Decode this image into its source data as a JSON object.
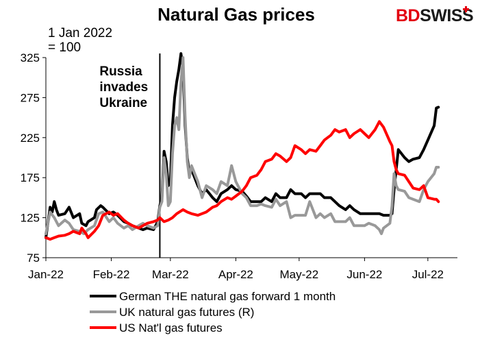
{
  "brand": {
    "part1": "BD",
    "part2": "SWISS",
    "color1": "#e3000f",
    "color2": "#1a1a1a"
  },
  "chart_data": {
    "type": "line",
    "title": "Natural Gas prices",
    "ylabel_line1": "1 Jan 2022",
    "ylabel_line2": "= 100",
    "ylim": [
      75,
      325
    ],
    "yticks": [
      "325",
      "275",
      "225",
      "175",
      "125",
      "75"
    ],
    "xticks": [
      "Jan-22",
      "Feb-22",
      "Mar-22",
      "Apr-22",
      "May-22",
      "Jun-22",
      "Jul-22"
    ],
    "grid": false,
    "legend_position": "bottom",
    "annotation": {
      "date": "2022-02-24",
      "lines": [
        "Russia",
        "invades",
        "Ukraine"
      ]
    },
    "series": [
      {
        "name": "German THE natural gas forward 1 month",
        "color": "#000000",
        "points": [
          [
            "2022-01-01",
            100
          ],
          [
            "2022-01-03",
            138
          ],
          [
            "2022-01-04",
            132
          ],
          [
            "2022-01-05",
            145
          ],
          [
            "2022-01-06",
            135
          ],
          [
            "2022-01-07",
            128
          ],
          [
            "2022-01-10",
            130
          ],
          [
            "2022-01-12",
            138
          ],
          [
            "2022-01-14",
            125
          ],
          [
            "2022-01-17",
            130
          ],
          [
            "2022-01-18",
            118
          ],
          [
            "2022-01-20",
            115
          ],
          [
            "2022-01-21",
            120
          ],
          [
            "2022-01-24",
            125
          ],
          [
            "2022-01-25",
            135
          ],
          [
            "2022-01-27",
            140
          ],
          [
            "2022-01-28",
            138
          ],
          [
            "2022-01-31",
            130
          ],
          [
            "2022-02-02",
            132
          ],
          [
            "2022-02-04",
            128
          ],
          [
            "2022-02-07",
            120
          ],
          [
            "2022-02-09",
            118
          ],
          [
            "2022-02-11",
            115
          ],
          [
            "2022-02-14",
            112
          ],
          [
            "2022-02-16",
            110
          ],
          [
            "2022-02-18",
            112
          ],
          [
            "2022-02-21",
            110
          ],
          [
            "2022-02-22",
            115
          ],
          [
            "2022-02-23",
            120
          ],
          [
            "2022-02-24",
            140
          ],
          [
            "2022-02-25",
            150
          ],
          [
            "2022-02-26",
            208
          ],
          [
            "2022-02-27",
            195
          ],
          [
            "2022-02-28",
            165
          ],
          [
            "2022-03-01",
            170
          ],
          [
            "2022-03-02",
            240
          ],
          [
            "2022-03-03",
            275
          ],
          [
            "2022-03-04",
            295
          ],
          [
            "2022-03-05",
            310
          ],
          [
            "2022-03-06",
            330
          ],
          [
            "2022-03-07",
            310
          ],
          [
            "2022-03-08",
            240
          ],
          [
            "2022-03-09",
            200
          ],
          [
            "2022-03-10",
            180
          ],
          [
            "2022-03-11",
            185
          ],
          [
            "2022-03-14",
            165
          ],
          [
            "2022-03-16",
            155
          ],
          [
            "2022-03-18",
            160
          ],
          [
            "2022-03-21",
            150
          ],
          [
            "2022-03-23",
            145
          ],
          [
            "2022-03-25",
            155
          ],
          [
            "2022-03-28",
            160
          ],
          [
            "2022-03-30",
            165
          ],
          [
            "2022-04-01",
            160
          ],
          [
            "2022-04-04",
            158
          ],
          [
            "2022-04-06",
            152
          ],
          [
            "2022-04-08",
            145
          ],
          [
            "2022-04-11",
            145
          ],
          [
            "2022-04-13",
            145
          ],
          [
            "2022-04-15",
            150
          ],
          [
            "2022-04-18",
            145
          ],
          [
            "2022-04-20",
            155
          ],
          [
            "2022-04-22",
            150
          ],
          [
            "2022-04-25",
            150
          ],
          [
            "2022-04-27",
            160
          ],
          [
            "2022-04-29",
            155
          ],
          [
            "2022-05-02",
            155
          ],
          [
            "2022-05-04",
            150
          ],
          [
            "2022-05-06",
            155
          ],
          [
            "2022-05-09",
            155
          ],
          [
            "2022-05-11",
            155
          ],
          [
            "2022-05-13",
            150
          ],
          [
            "2022-05-16",
            150
          ],
          [
            "2022-05-18",
            145
          ],
          [
            "2022-05-20",
            140
          ],
          [
            "2022-05-23",
            135
          ],
          [
            "2022-05-25",
            140
          ],
          [
            "2022-05-27",
            135
          ],
          [
            "2022-05-30",
            130
          ],
          [
            "2022-06-01",
            130
          ],
          [
            "2022-06-03",
            130
          ],
          [
            "2022-06-06",
            130
          ],
          [
            "2022-06-08",
            130
          ],
          [
            "2022-06-10",
            128
          ],
          [
            "2022-06-13",
            128
          ],
          [
            "2022-06-14",
            130
          ],
          [
            "2022-06-15",
            160
          ],
          [
            "2022-06-16",
            185
          ],
          [
            "2022-06-17",
            210
          ],
          [
            "2022-06-20",
            200
          ],
          [
            "2022-06-22",
            195
          ],
          [
            "2022-06-24",
            198
          ],
          [
            "2022-06-27",
            200
          ],
          [
            "2022-06-29",
            210
          ],
          [
            "2022-07-01",
            222
          ],
          [
            "2022-07-04",
            240
          ],
          [
            "2022-07-05",
            262
          ],
          [
            "2022-07-06",
            263
          ]
        ]
      },
      {
        "name": "UK natural gas futures (R)",
        "color": "#999999",
        "points": [
          [
            "2022-01-01",
            105
          ],
          [
            "2022-01-03",
            132
          ],
          [
            "2022-01-05",
            125
          ],
          [
            "2022-01-07",
            115
          ],
          [
            "2022-01-10",
            122
          ],
          [
            "2022-01-12",
            118
          ],
          [
            "2022-01-14",
            110
          ],
          [
            "2022-01-17",
            108
          ],
          [
            "2022-01-19",
            105
          ],
          [
            "2022-01-21",
            110
          ],
          [
            "2022-01-24",
            115
          ],
          [
            "2022-01-26",
            130
          ],
          [
            "2022-01-28",
            132
          ],
          [
            "2022-01-31",
            120
          ],
          [
            "2022-02-02",
            125
          ],
          [
            "2022-02-04",
            118
          ],
          [
            "2022-02-07",
            112
          ],
          [
            "2022-02-09",
            115
          ],
          [
            "2022-02-11",
            110
          ],
          [
            "2022-02-14",
            115
          ],
          [
            "2022-02-16",
            118
          ],
          [
            "2022-02-18",
            115
          ],
          [
            "2022-02-21",
            112
          ],
          [
            "2022-02-23",
            115
          ],
          [
            "2022-02-24",
            138
          ],
          [
            "2022-02-25",
            145
          ],
          [
            "2022-02-26",
            200
          ],
          [
            "2022-02-27",
            180
          ],
          [
            "2022-02-28",
            140
          ],
          [
            "2022-03-01",
            145
          ],
          [
            "2022-03-02",
            205
          ],
          [
            "2022-03-03",
            240
          ],
          [
            "2022-03-04",
            250
          ],
          [
            "2022-03-05",
            235
          ],
          [
            "2022-03-06",
            295
          ],
          [
            "2022-03-07",
            325
          ],
          [
            "2022-03-08",
            250
          ],
          [
            "2022-03-09",
            195
          ],
          [
            "2022-03-10",
            175
          ],
          [
            "2022-03-11",
            190
          ],
          [
            "2022-03-14",
            170
          ],
          [
            "2022-03-16",
            150
          ],
          [
            "2022-03-18",
            165
          ],
          [
            "2022-03-21",
            160
          ],
          [
            "2022-03-23",
            155
          ],
          [
            "2022-03-25",
            170
          ],
          [
            "2022-03-28",
            165
          ],
          [
            "2022-03-30",
            190
          ],
          [
            "2022-04-01",
            170
          ],
          [
            "2022-04-04",
            155
          ],
          [
            "2022-04-06",
            150
          ],
          [
            "2022-04-08",
            140
          ],
          [
            "2022-04-11",
            140
          ],
          [
            "2022-04-13",
            142
          ],
          [
            "2022-04-15",
            140
          ],
          [
            "2022-04-18",
            138
          ],
          [
            "2022-04-20",
            148
          ],
          [
            "2022-04-22",
            140
          ],
          [
            "2022-04-25",
            145
          ],
          [
            "2022-04-27",
            125
          ],
          [
            "2022-04-29",
            128
          ],
          [
            "2022-05-02",
            128
          ],
          [
            "2022-05-04",
            128
          ],
          [
            "2022-05-06",
            145
          ],
          [
            "2022-05-09",
            125
          ],
          [
            "2022-05-11",
            130
          ],
          [
            "2022-05-13",
            125
          ],
          [
            "2022-05-16",
            130
          ],
          [
            "2022-05-18",
            120
          ],
          [
            "2022-05-20",
            120
          ],
          [
            "2022-05-23",
            120
          ],
          [
            "2022-05-25",
            125
          ],
          [
            "2022-05-27",
            115
          ],
          [
            "2022-05-30",
            115
          ],
          [
            "2022-06-01",
            115
          ],
          [
            "2022-06-03",
            118
          ],
          [
            "2022-06-06",
            115
          ],
          [
            "2022-06-08",
            110
          ],
          [
            "2022-06-09",
            105
          ],
          [
            "2022-06-10",
            112
          ],
          [
            "2022-06-13",
            118
          ],
          [
            "2022-06-14",
            140
          ],
          [
            "2022-06-15",
            180
          ],
          [
            "2022-06-16",
            165
          ],
          [
            "2022-06-17",
            160
          ],
          [
            "2022-06-20",
            158
          ],
          [
            "2022-06-22",
            150
          ],
          [
            "2022-06-24",
            148
          ],
          [
            "2022-06-27",
            145
          ],
          [
            "2022-06-29",
            160
          ],
          [
            "2022-07-01",
            170
          ],
          [
            "2022-07-04",
            180
          ],
          [
            "2022-07-05",
            188
          ],
          [
            "2022-07-06",
            188
          ]
        ]
      },
      {
        "name": "US Nat'l gas futures",
        "color": "#ff0000",
        "points": [
          [
            "2022-01-01",
            100
          ],
          [
            "2022-01-03",
            98
          ],
          [
            "2022-01-05",
            100
          ],
          [
            "2022-01-07",
            102
          ],
          [
            "2022-01-10",
            103
          ],
          [
            "2022-01-12",
            105
          ],
          [
            "2022-01-14",
            108
          ],
          [
            "2022-01-17",
            105
          ],
          [
            "2022-01-18",
            112
          ],
          [
            "2022-01-20",
            105
          ],
          [
            "2022-01-21",
            100
          ],
          [
            "2022-01-24",
            108
          ],
          [
            "2022-01-26",
            115
          ],
          [
            "2022-01-28",
            128
          ],
          [
            "2022-01-31",
            132
          ],
          [
            "2022-02-02",
            128
          ],
          [
            "2022-02-04",
            130
          ],
          [
            "2022-02-07",
            122
          ],
          [
            "2022-02-09",
            118
          ],
          [
            "2022-02-11",
            115
          ],
          [
            "2022-02-14",
            112
          ],
          [
            "2022-02-16",
            115
          ],
          [
            "2022-02-18",
            118
          ],
          [
            "2022-02-21",
            120
          ],
          [
            "2022-02-23",
            122
          ],
          [
            "2022-02-24",
            125
          ],
          [
            "2022-02-26",
            120
          ],
          [
            "2022-02-28",
            122
          ],
          [
            "2022-03-02",
            125
          ],
          [
            "2022-03-04",
            130
          ],
          [
            "2022-03-07",
            135
          ],
          [
            "2022-03-09",
            132
          ],
          [
            "2022-03-11",
            130
          ],
          [
            "2022-03-14",
            128
          ],
          [
            "2022-03-16",
            130
          ],
          [
            "2022-03-18",
            132
          ],
          [
            "2022-03-21",
            138
          ],
          [
            "2022-03-23",
            140
          ],
          [
            "2022-03-25",
            145
          ],
          [
            "2022-03-28",
            150
          ],
          [
            "2022-03-30",
            148
          ],
          [
            "2022-04-01",
            152
          ],
          [
            "2022-04-04",
            158
          ],
          [
            "2022-04-06",
            165
          ],
          [
            "2022-04-08",
            175
          ],
          [
            "2022-04-11",
            178
          ],
          [
            "2022-04-13",
            185
          ],
          [
            "2022-04-15",
            195
          ],
          [
            "2022-04-18",
            198
          ],
          [
            "2022-04-20",
            205
          ],
          [
            "2022-04-22",
            202
          ],
          [
            "2022-04-25",
            195
          ],
          [
            "2022-04-27",
            200
          ],
          [
            "2022-04-29",
            215
          ],
          [
            "2022-05-02",
            210
          ],
          [
            "2022-05-04",
            205
          ],
          [
            "2022-05-06",
            210
          ],
          [
            "2022-05-09",
            208
          ],
          [
            "2022-05-11",
            215
          ],
          [
            "2022-05-13",
            222
          ],
          [
            "2022-05-16",
            228
          ],
          [
            "2022-05-18",
            235
          ],
          [
            "2022-05-20",
            232
          ],
          [
            "2022-05-23",
            235
          ],
          [
            "2022-05-25",
            225
          ],
          [
            "2022-05-27",
            230
          ],
          [
            "2022-05-30",
            235
          ],
          [
            "2022-06-01",
            230
          ],
          [
            "2022-06-03",
            225
          ],
          [
            "2022-06-06",
            235
          ],
          [
            "2022-06-08",
            245
          ],
          [
            "2022-06-10",
            238
          ],
          [
            "2022-06-13",
            220
          ],
          [
            "2022-06-14",
            215
          ],
          [
            "2022-06-15",
            195
          ],
          [
            "2022-06-16",
            185
          ],
          [
            "2022-06-17",
            180
          ],
          [
            "2022-06-20",
            178
          ],
          [
            "2022-06-22",
            170
          ],
          [
            "2022-06-24",
            162
          ],
          [
            "2022-06-27",
            160
          ],
          [
            "2022-06-29",
            165
          ],
          [
            "2022-07-01",
            150
          ],
          [
            "2022-07-04",
            148
          ],
          [
            "2022-07-05",
            148
          ],
          [
            "2022-07-06",
            145
          ]
        ]
      }
    ]
  }
}
